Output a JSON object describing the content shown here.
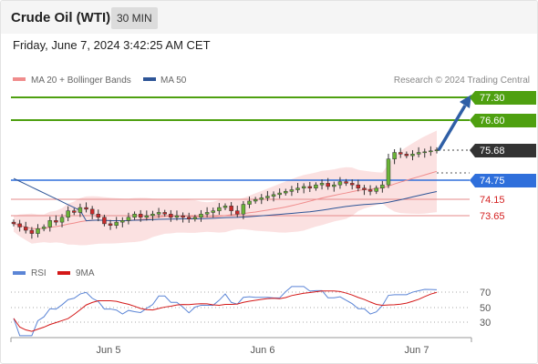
{
  "header": {
    "title": "Crude Oil (WTI)",
    "timeframe": "30 MIN"
  },
  "datetime": "Friday, June 7, 2024 3:42:25 AM CET",
  "legend": [
    {
      "label": "MA 20 + Bollinger Bands",
      "color": "#f08c8c"
    },
    {
      "label": "MA 50",
      "color": "#2e5597"
    }
  ],
  "watermark": "Research © 2024 Trading Central",
  "levels": [
    {
      "value": "77.30",
      "kind": "target",
      "color": "#4ea010"
    },
    {
      "value": "76.60",
      "kind": "target",
      "color": "#4ea010"
    },
    {
      "value": "75.68",
      "kind": "last",
      "color": "#333333"
    },
    {
      "value": "74.75",
      "kind": "pivot",
      "color": "#2f6fdb"
    },
    {
      "value": "74.15",
      "kind": "support",
      "color": "#d42020"
    },
    {
      "value": "73.65",
      "kind": "support",
      "color": "#d42020"
    }
  ],
  "rsi_legend": [
    {
      "label": "RSI",
      "color": "#5b85d6"
    },
    {
      "label": "9MA",
      "color": "#d41818"
    }
  ],
  "rsi_levels": [
    "70",
    "50",
    "30"
  ],
  "x_axis": [
    "Jun 5",
    "Jun 6",
    "Jun 7"
  ],
  "chart_data": {
    "type": "candlestick",
    "instrument": "Crude Oil (WTI)",
    "timeframe": "30 MIN",
    "price_range": [
      72.8,
      77.5
    ],
    "price_series_close": [
      73.4,
      73.3,
      73.2,
      73.1,
      73.25,
      73.3,
      73.5,
      73.45,
      73.6,
      73.8,
      73.75,
      73.9,
      73.85,
      73.7,
      73.6,
      73.4,
      73.35,
      73.45,
      73.5,
      73.6,
      73.7,
      73.6,
      73.65,
      73.7,
      73.75,
      73.7,
      73.6,
      73.65,
      73.6,
      73.55,
      73.6,
      73.7,
      73.75,
      73.8,
      73.9,
      73.95,
      73.8,
      73.7,
      74.0,
      74.1,
      74.15,
      74.2,
      74.25,
      74.3,
      74.35,
      74.4,
      74.45,
      74.5,
      74.55,
      74.5,
      74.6,
      74.65,
      74.55,
      74.6,
      74.7,
      74.65,
      74.6,
      74.5,
      74.45,
      74.4,
      74.5,
      74.6,
      75.4,
      75.6,
      75.55,
      75.5,
      75.55,
      75.6,
      75.62,
      75.65,
      75.68
    ],
    "projection": {
      "from": 75.68,
      "to": 77.3
    },
    "rsi_range": [
      10,
      80
    ],
    "rsi_levels": [
      70,
      50,
      30
    ]
  }
}
